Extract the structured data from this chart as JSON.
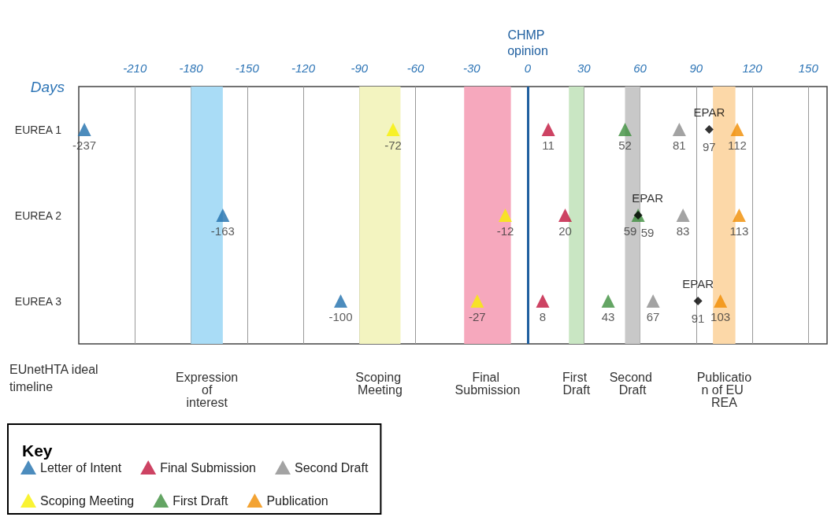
{
  "chart_data": {
    "type": "scatter",
    "orientation": "horizontal",
    "xlabel": "Days",
    "categories": [
      "EUREA 1",
      "EUREA 2",
      "EUREA 3"
    ],
    "xlim": [
      -240,
      160
    ],
    "xticks": [
      -210,
      -180,
      -150,
      -120,
      -90,
      -60,
      -30,
      0,
      30,
      60,
      90,
      120,
      150
    ],
    "grid": "x",
    "marker": "triangle",
    "data_labels": true,
    "legend": "bottom left",
    "legend_title": "Key",
    "series": [
      {
        "name": "Letter of Intent",
        "color": "#1f6fad",
        "values": [
          -237,
          -163,
          -100
        ]
      },
      {
        "name": "Final Submission",
        "color": "#c0143c",
        "values": [
          11,
          20,
          8
        ]
      },
      {
        "name": "Second Draft",
        "color": "#8c8c8c",
        "values": [
          81,
          83,
          67
        ]
      },
      {
        "name": "Scoping Meeting",
        "color": "#f7f000",
        "values": [
          -72,
          -12,
          -27
        ]
      },
      {
        "name": "First Draft",
        "color": "#3d8f3d",
        "values": [
          52,
          59,
          43
        ]
      },
      {
        "name": "Publication",
        "color": "#f08c00",
        "values": [
          112,
          113,
          103
        ]
      },
      {
        "name": "EPAR",
        "color": "#000000",
        "marker": "diamond",
        "values": [
          97,
          59,
          91
        ]
      }
    ],
    "ref_lines": [
      {
        "axis": "x",
        "value": 0,
        "label": "CHMP opinion",
        "color": "#1f5f9f"
      }
    ],
    "bands": [
      {
        "axis": "x",
        "from": -180,
        "to": -163,
        "label": "Expression of interest",
        "color": "#a9dcf6"
      },
      {
        "axis": "x",
        "from": -90,
        "to": -68,
        "label": "Scoping Meeting",
        "color": "#f3f4c0"
      },
      {
        "axis": "x",
        "from": -34,
        "to": -9,
        "label": "Final Submission",
        "color": "#f6a8bd"
      },
      {
        "axis": "x",
        "from": 22,
        "to": 30,
        "label": "First Draft",
        "color": "#c9e6c3"
      },
      {
        "axis": "x",
        "from": 52,
        "to": 60,
        "label": "Second Draft",
        "color": "#c8c8c8"
      },
      {
        "axis": "x",
        "from": 99,
        "to": 111,
        "label": "Publication of EU REA",
        "color": "#fcd8a8"
      }
    ],
    "annotations": [
      "EUnetHTA ideal timeline"
    ]
  }
}
